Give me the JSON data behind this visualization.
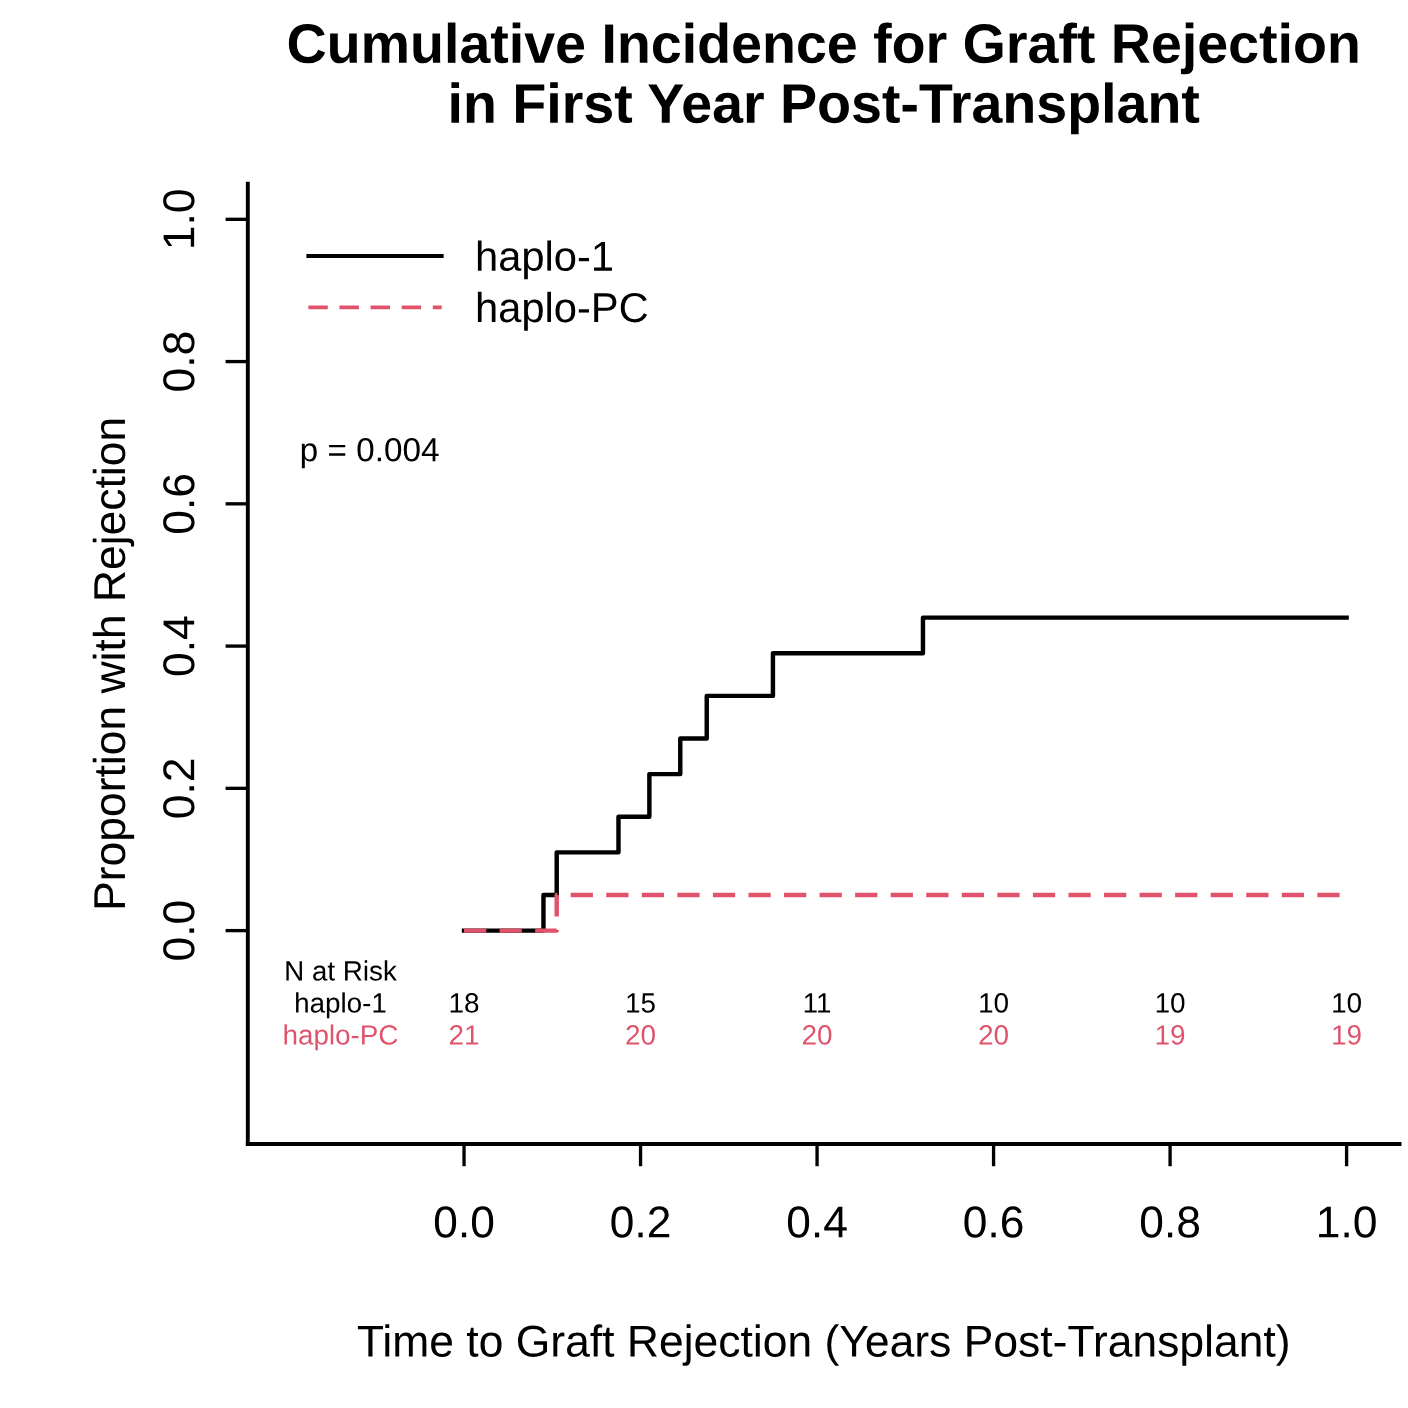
{
  "chart_data": {
    "type": "step",
    "title": "Cumulative Incidence for Graft Rejection\nin First Year Post-Transplant",
    "xlabel": "Time to Graft Rejection (Years Post-Transplant)",
    "ylabel": "Proportion with Rejection",
    "series": [
      {
        "name": "haplo-1",
        "color": "#000000",
        "line_style": "solid",
        "x": [
          0,
          0.09,
          0.105,
          0.175,
          0.21,
          0.245,
          0.275,
          0.35,
          0.52,
          1.0
        ],
        "values": [
          0,
          0.05,
          0.11,
          0.16,
          0.22,
          0.27,
          0.33,
          0.39,
          0.44,
          0.44
        ]
      },
      {
        "name": "haplo-PC",
        "color": "#df536b",
        "line_style": "dashed",
        "x": [
          0,
          0.105,
          1.0
        ],
        "values": [
          0,
          0.05,
          0.05
        ]
      }
    ],
    "xlim": [
      -0.245,
      1.06
    ],
    "ylim": [
      -0.3,
      1.05
    ],
    "xticks": [
      {
        "value": 0,
        "label": "0.0"
      },
      0.2,
      0.4,
      0.6,
      0.8,
      {
        "value": 1,
        "label": "1.0"
      }
    ],
    "yticks": [
      {
        "value": 0,
        "label": "0.0"
      },
      0.2,
      0.4,
      0.6,
      0.8,
      {
        "value": 1,
        "label": "1.0"
      }
    ],
    "legend": "top left",
    "grid": false,
    "annotations": [
      "p = 0.004",
      "N at Risk",
      "haplo-1",
      "18",
      "15",
      "11",
      "10",
      "10",
      "10",
      "haplo-PC",
      "21",
      "20",
      "20",
      "20",
      "19",
      "19"
    ]
  }
}
